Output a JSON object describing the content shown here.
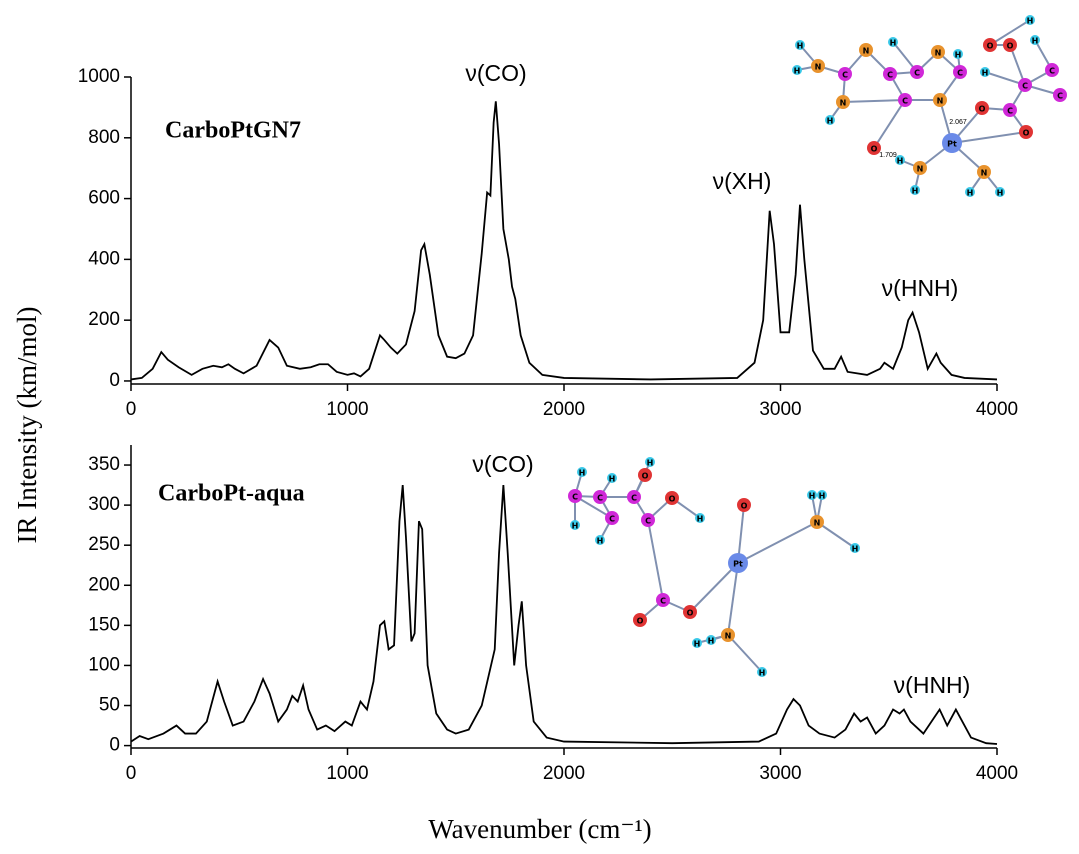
{
  "ylabel": "IR Intensity (km/mol)",
  "chart_data": [
    {
      "type": "line",
      "title": "CarboPtGN7",
      "x": [
        0,
        50,
        100,
        140,
        170,
        220,
        280,
        330,
        380,
        420,
        450,
        480,
        520,
        580,
        640,
        680,
        720,
        780,
        830,
        870,
        910,
        950,
        1000,
        1030,
        1060,
        1100,
        1150,
        1170,
        1200,
        1230,
        1270,
        1310,
        1340,
        1355,
        1380,
        1420,
        1460,
        1500,
        1540,
        1580,
        1620,
        1645,
        1660,
        1675,
        1685,
        1700,
        1720,
        1730,
        1745,
        1760,
        1775,
        1800,
        1840,
        1900,
        2000,
        2400,
        2800,
        2880,
        2920,
        2950,
        2970,
        3000,
        3040,
        3070,
        3090,
        3110,
        3150,
        3200,
        3250,
        3280,
        3310,
        3400,
        3460,
        3480,
        3520,
        3560,
        3590,
        3610,
        3640,
        3680,
        3720,
        3740,
        3790,
        3850,
        4000
      ],
      "series": [
        {
          "color": "#000000",
          "values": [
            5,
            10,
            40,
            95,
            70,
            45,
            20,
            40,
            50,
            45,
            55,
            40,
            25,
            50,
            135,
            110,
            50,
            40,
            45,
            55,
            55,
            30,
            20,
            25,
            15,
            40,
            150,
            135,
            110,
            90,
            120,
            230,
            430,
            450,
            350,
            150,
            80,
            75,
            90,
            150,
            420,
            620,
            610,
            850,
            920,
            780,
            500,
            460,
            400,
            310,
            270,
            150,
            60,
            20,
            10,
            5,
            10,
            60,
            200,
            560,
            450,
            160,
            160,
            350,
            580,
            400,
            100,
            40,
            40,
            80,
            30,
            20,
            40,
            60,
            40,
            110,
            200,
            225,
            160,
            40,
            90,
            60,
            20,
            10,
            5
          ]
        }
      ],
      "xlim": [
        0,
        4000
      ],
      "xticks": [
        0,
        1000,
        2000,
        3000,
        4000
      ],
      "ylim": [
        -10,
        1000
      ],
      "yticks": [
        0,
        200,
        400,
        600,
        800,
        1000
      ],
      "annotations": [
        "ν(CO)",
        "ν(XH)",
        "ν(HNH)"
      ],
      "inset": {
        "atoms": [
          "H",
          "H",
          "N",
          "C",
          "N",
          "C",
          "C",
          "N",
          "C",
          "N",
          "C",
          "O",
          "H",
          "N",
          "Pt",
          "O",
          "C",
          "O",
          "C",
          "C",
          "C",
          "O",
          "O",
          "H",
          "H",
          "H",
          "N",
          "H",
          "H",
          "N",
          "H",
          "H",
          "H",
          "H"
        ],
        "labels": [
          "2.067",
          "1.709"
        ]
      }
    },
    {
      "type": "line",
      "title": "CarboPt-aqua",
      "xlabel": "Wavenumber (cm⁻¹)",
      "x": [
        0,
        40,
        80,
        150,
        210,
        250,
        300,
        350,
        380,
        400,
        430,
        470,
        520,
        570,
        610,
        640,
        680,
        720,
        745,
        770,
        795,
        820,
        860,
        900,
        940,
        990,
        1020,
        1060,
        1090,
        1120,
        1150,
        1170,
        1190,
        1215,
        1240,
        1255,
        1270,
        1295,
        1310,
        1330,
        1345,
        1370,
        1410,
        1460,
        1500,
        1560,
        1620,
        1680,
        1700,
        1720,
        1740,
        1770,
        1790,
        1805,
        1825,
        1860,
        1920,
        2000,
        2500,
        2900,
        2980,
        3030,
        3060,
        3090,
        3130,
        3180,
        3250,
        3300,
        3340,
        3370,
        3400,
        3440,
        3480,
        3520,
        3550,
        3570,
        3600,
        3660,
        3710,
        3735,
        3770,
        3810,
        3840,
        3880,
        3950,
        4000
      ],
      "series": [
        {
          "color": "#000000",
          "values": [
            5,
            12,
            8,
            15,
            25,
            15,
            15,
            30,
            60,
            80,
            55,
            25,
            30,
            55,
            83,
            65,
            30,
            45,
            62,
            55,
            75,
            45,
            20,
            25,
            18,
            30,
            25,
            55,
            45,
            80,
            150,
            155,
            120,
            125,
            280,
            325,
            260,
            130,
            140,
            280,
            270,
            100,
            40,
            20,
            15,
            20,
            50,
            120,
            240,
            325,
            240,
            100,
            150,
            180,
            100,
            30,
            10,
            5,
            3,
            5,
            15,
            45,
            58,
            50,
            25,
            15,
            10,
            20,
            40,
            30,
            35,
            15,
            25,
            45,
            40,
            45,
            30,
            15,
            35,
            45,
            25,
            45,
            30,
            10,
            3,
            2
          ]
        }
      ],
      "xlim": [
        0,
        4000
      ],
      "xticks": [
        0,
        1000,
        2000,
        3000,
        4000
      ],
      "ylim": [
        -3,
        375
      ],
      "yticks": [
        0,
        50,
        100,
        150,
        200,
        250,
        300,
        350
      ],
      "annotations": [
        "ν(CO)",
        "ν(HNH)"
      ],
      "inset": {
        "atoms": [
          "H",
          "C",
          "H",
          "C",
          "H",
          "C",
          "H",
          "C",
          "H",
          "C",
          "O",
          "H",
          "O",
          "C",
          "O",
          "O",
          "Pt",
          "O",
          "N",
          "H",
          "H",
          "H",
          "N",
          "H",
          "H",
          "H"
        ],
        "labels": []
      }
    }
  ]
}
